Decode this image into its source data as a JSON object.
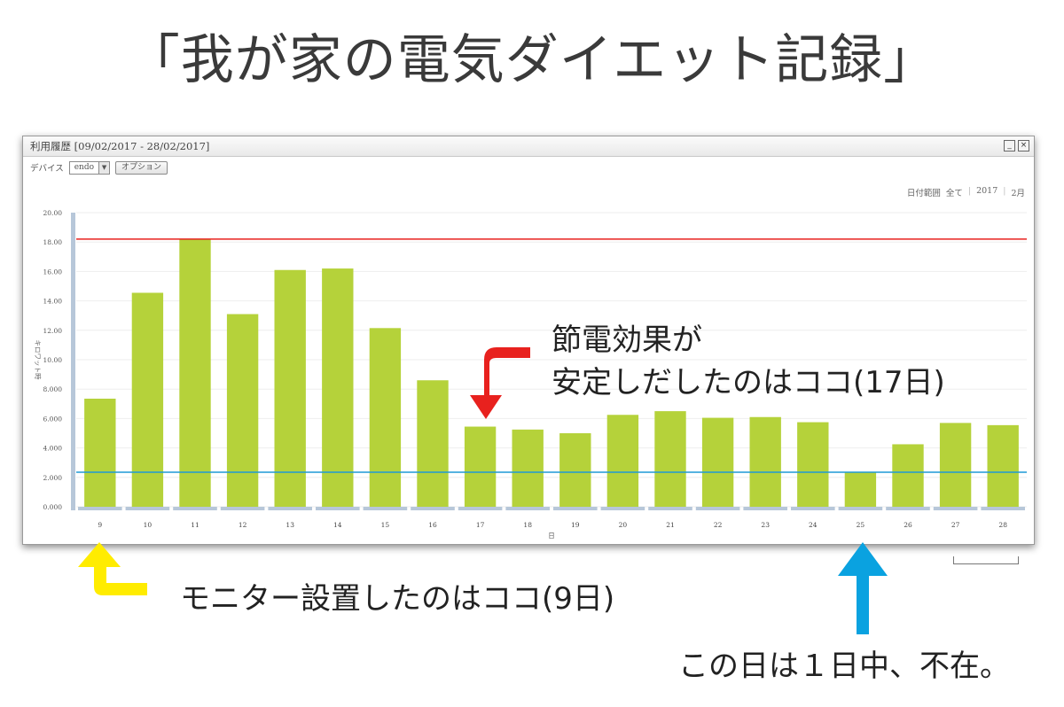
{
  "page": {
    "title": "「我が家の電気ダイエット記録」"
  },
  "window": {
    "title": "利用履歴 [09/02/2017 - 28/02/2017]",
    "minimize_label": "_",
    "close_label": "×",
    "device_label": "デバイス",
    "device_value": "endo",
    "options_label": "オプション",
    "range_label": "日付範囲",
    "range_all": "全て",
    "range_year": "2017",
    "range_month": "2月"
  },
  "annotations": {
    "day17_line1": "節電効果が",
    "day17_line2": "安定しだしたのはココ(17日)",
    "day9": "モニター設置したのはココ(9日)",
    "day25": "この日は１日中、不在。"
  },
  "colors": {
    "bar": "#b5d23a",
    "max_line": "#e8211e",
    "min_line": "#1f9ad6",
    "red_arrow": "#e8211e",
    "yellow_arrow": "#ffec00",
    "blue_arrow": "#0aa2e0",
    "grid": "#eeeeee",
    "axis_track": "#b7c7d9"
  },
  "chart_data": {
    "type": "bar",
    "categories": [
      "9",
      "10",
      "11",
      "12",
      "13",
      "14",
      "15",
      "16",
      "17",
      "18",
      "19",
      "20",
      "21",
      "22",
      "23",
      "24",
      "25",
      "26",
      "27",
      "28"
    ],
    "values": [
      7.35,
      14.55,
      18.2,
      13.1,
      16.1,
      16.2,
      12.15,
      8.6,
      5.45,
      5.25,
      5.0,
      6.25,
      6.5,
      6.05,
      6.1,
      5.75,
      2.35,
      4.25,
      5.7,
      5.55
    ],
    "xlabel": "日",
    "ylabel": "キロワット時",
    "ylim": [
      0,
      20
    ],
    "yticks": [
      "0.000",
      "2.000",
      "4.000",
      "6.000",
      "8.000",
      "10.00",
      "12.00",
      "14.00",
      "16.00",
      "18.00",
      "20.00"
    ],
    "reference_lines": [
      {
        "name": "max",
        "value": 18.2
      },
      {
        "name": "min",
        "value": 2.35
      }
    ],
    "grid": true,
    "legend": "none"
  }
}
